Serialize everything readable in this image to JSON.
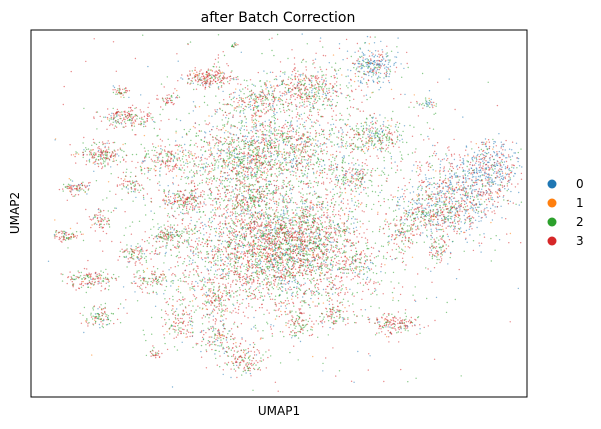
{
  "chart_data": {
    "type": "scatter",
    "title": "after Batch Correction",
    "xlabel": "UMAP1",
    "ylabel": "UMAP2",
    "x_ticks": "none",
    "y_ticks": "none",
    "grid": false,
    "legend_position": "right",
    "series": [
      {
        "name": "0",
        "color": "#1f77b4"
      },
      {
        "name": "1",
        "color": "#ff7f0e"
      },
      {
        "name": "2",
        "color": "#2ca02c"
      },
      {
        "name": "3",
        "color": "#d62728"
      }
    ],
    "xlim": [
      0,
      100
    ],
    "ylim": [
      0,
      100
    ],
    "clusters": [
      {
        "x": 47,
        "y": 40,
        "sx": 10,
        "sy": 9,
        "n": 2200,
        "mix": [
          0.14,
          0.04,
          0.34,
          0.48
        ]
      },
      {
        "x": 53,
        "y": 42,
        "sx": 6,
        "sy": 6,
        "n": 900,
        "mix": [
          0.14,
          0.04,
          0.4,
          0.42
        ]
      },
      {
        "x": 42,
        "y": 65,
        "sx": 6,
        "sy": 5,
        "n": 700,
        "mix": [
          0.15,
          0.05,
          0.42,
          0.38
        ]
      },
      {
        "x": 52,
        "y": 68,
        "sx": 6,
        "sy": 5,
        "n": 600,
        "mix": [
          0.15,
          0.05,
          0.42,
          0.38
        ]
      },
      {
        "x": 56,
        "y": 84,
        "sx": 4,
        "sy": 3,
        "n": 400,
        "mix": [
          0.12,
          0.05,
          0.4,
          0.43
        ]
      },
      {
        "x": 45,
        "y": 80,
        "sx": 3,
        "sy": 2.5,
        "n": 200,
        "mix": [
          0.12,
          0.05,
          0.4,
          0.43
        ]
      },
      {
        "x": 86,
        "y": 55,
        "sx": 4.5,
        "sy": 6,
        "n": 700,
        "mix": [
          0.35,
          0.04,
          0.15,
          0.46
        ]
      },
      {
        "x": 93,
        "y": 62,
        "sx": 3,
        "sy": 4,
        "n": 350,
        "mix": [
          0.55,
          0.03,
          0.1,
          0.32
        ]
      },
      {
        "x": 80,
        "y": 50,
        "sx": 4,
        "sy": 3,
        "n": 300,
        "mix": [
          0.25,
          0.05,
          0.45,
          0.25
        ]
      },
      {
        "x": 65,
        "y": 60,
        "sx": 3,
        "sy": 2,
        "n": 160,
        "mix": [
          0.15,
          0.04,
          0.45,
          0.36
        ]
      },
      {
        "x": 69,
        "y": 71,
        "sx": 3,
        "sy": 2.5,
        "n": 260,
        "mix": [
          0.15,
          0.05,
          0.5,
          0.3
        ]
      },
      {
        "x": 69,
        "y": 90,
        "sx": 2.5,
        "sy": 2.5,
        "n": 250,
        "mix": [
          0.5,
          0.03,
          0.25,
          0.22
        ]
      },
      {
        "x": 36,
        "y": 87,
        "sx": 2.5,
        "sy": 1.2,
        "n": 200,
        "mix": [
          0.06,
          0.03,
          0.25,
          0.66
        ]
      },
      {
        "x": 20,
        "y": 76,
        "sx": 2.5,
        "sy": 1.5,
        "n": 180,
        "mix": [
          0.08,
          0.04,
          0.3,
          0.58
        ]
      },
      {
        "x": 14,
        "y": 66,
        "sx": 2.5,
        "sy": 1.5,
        "n": 180,
        "mix": [
          0.08,
          0.04,
          0.35,
          0.53
        ]
      },
      {
        "x": 27,
        "y": 65,
        "sx": 2.5,
        "sy": 2,
        "n": 150,
        "mix": [
          0.08,
          0.04,
          0.35,
          0.53
        ]
      },
      {
        "x": 31,
        "y": 54,
        "sx": 2.5,
        "sy": 1.5,
        "n": 160,
        "mix": [
          0.08,
          0.04,
          0.35,
          0.53
        ]
      },
      {
        "x": 44,
        "y": 54,
        "sx": 2.5,
        "sy": 2,
        "n": 160,
        "mix": [
          0.15,
          0.04,
          0.55,
          0.26
        ]
      },
      {
        "x": 9,
        "y": 57,
        "sx": 1.5,
        "sy": 1,
        "n": 80,
        "mix": [
          0.08,
          0.04,
          0.35,
          0.53
        ]
      },
      {
        "x": 7,
        "y": 44,
        "sx": 1.5,
        "sy": 0.8,
        "n": 70,
        "mix": [
          0.08,
          0.04,
          0.35,
          0.53
        ]
      },
      {
        "x": 14,
        "y": 48,
        "sx": 1,
        "sy": 1.5,
        "n": 60,
        "mix": [
          0.08,
          0.04,
          0.35,
          0.53
        ]
      },
      {
        "x": 20,
        "y": 58,
        "sx": 1.5,
        "sy": 1.5,
        "n": 60,
        "mix": [
          0.08,
          0.04,
          0.35,
          0.53
        ]
      },
      {
        "x": 12,
        "y": 32,
        "sx": 2.5,
        "sy": 1.2,
        "n": 140,
        "mix": [
          0.08,
          0.04,
          0.35,
          0.53
        ]
      },
      {
        "x": 14,
        "y": 22,
        "sx": 1.5,
        "sy": 1.5,
        "n": 90,
        "mix": [
          0.08,
          0.04,
          0.45,
          0.43
        ]
      },
      {
        "x": 21,
        "y": 39,
        "sx": 1.5,
        "sy": 1.5,
        "n": 80,
        "mix": [
          0.08,
          0.04,
          0.45,
          0.43
        ]
      },
      {
        "x": 25,
        "y": 32,
        "sx": 2,
        "sy": 1,
        "n": 90,
        "mix": [
          0.08,
          0.04,
          0.45,
          0.43
        ]
      },
      {
        "x": 28,
        "y": 44,
        "sx": 2,
        "sy": 1.2,
        "n": 100,
        "mix": [
          0.08,
          0.04,
          0.45,
          0.43
        ]
      },
      {
        "x": 30,
        "y": 20,
        "sx": 2,
        "sy": 3,
        "n": 120,
        "mix": [
          0.08,
          0.04,
          0.4,
          0.48
        ]
      },
      {
        "x": 37,
        "y": 26,
        "sx": 2,
        "sy": 3,
        "n": 120,
        "mix": [
          0.08,
          0.04,
          0.4,
          0.48
        ]
      },
      {
        "x": 38,
        "y": 16,
        "sx": 1.5,
        "sy": 2,
        "n": 100,
        "mix": [
          0.08,
          0.04,
          0.4,
          0.48
        ]
      },
      {
        "x": 43,
        "y": 10,
        "sx": 2,
        "sy": 2,
        "n": 140,
        "mix": [
          0.08,
          0.04,
          0.35,
          0.53
        ]
      },
      {
        "x": 54,
        "y": 20,
        "sx": 1.2,
        "sy": 2,
        "n": 80,
        "mix": [
          0.08,
          0.04,
          0.4,
          0.48
        ]
      },
      {
        "x": 61,
        "y": 22,
        "sx": 1.5,
        "sy": 1.5,
        "n": 70,
        "mix": [
          0.08,
          0.04,
          0.4,
          0.48
        ]
      },
      {
        "x": 66,
        "y": 36,
        "sx": 1.5,
        "sy": 2,
        "n": 70,
        "mix": [
          0.08,
          0.04,
          0.4,
          0.48
        ]
      },
      {
        "x": 75,
        "y": 43,
        "sx": 1.5,
        "sy": 3,
        "n": 90,
        "mix": [
          0.08,
          0.04,
          0.4,
          0.48
        ]
      },
      {
        "x": 82,
        "y": 40,
        "sx": 1.5,
        "sy": 2,
        "n": 70,
        "mix": [
          0.1,
          0.04,
          0.4,
          0.46
        ]
      },
      {
        "x": 73,
        "y": 20,
        "sx": 2.5,
        "sy": 1.5,
        "n": 160,
        "mix": [
          0.06,
          0.03,
          0.25,
          0.66
        ]
      },
      {
        "x": 25,
        "y": 12,
        "sx": 0.8,
        "sy": 0.8,
        "n": 25,
        "mix": [
          0.08,
          0.04,
          0.4,
          0.48
        ]
      },
      {
        "x": 18,
        "y": 83,
        "sx": 1,
        "sy": 0.8,
        "n": 40,
        "mix": [
          0.08,
          0.04,
          0.35,
          0.53
        ]
      },
      {
        "x": 28,
        "y": 81,
        "sx": 1,
        "sy": 1,
        "n": 40,
        "mix": [
          0.08,
          0.04,
          0.35,
          0.53
        ]
      },
      {
        "x": 80,
        "y": 80,
        "sx": 1,
        "sy": 0.8,
        "n": 35,
        "mix": [
          0.4,
          0.04,
          0.3,
          0.26
        ]
      },
      {
        "x": 41,
        "y": 96,
        "sx": 0.5,
        "sy": 0.5,
        "n": 15,
        "mix": [
          0.1,
          0.04,
          0.7,
          0.16
        ]
      },
      {
        "x": 50,
        "y": 55,
        "sx": 18,
        "sy": 22,
        "n": 1600,
        "mix": [
          0.15,
          0.05,
          0.4,
          0.4
        ]
      }
    ]
  }
}
